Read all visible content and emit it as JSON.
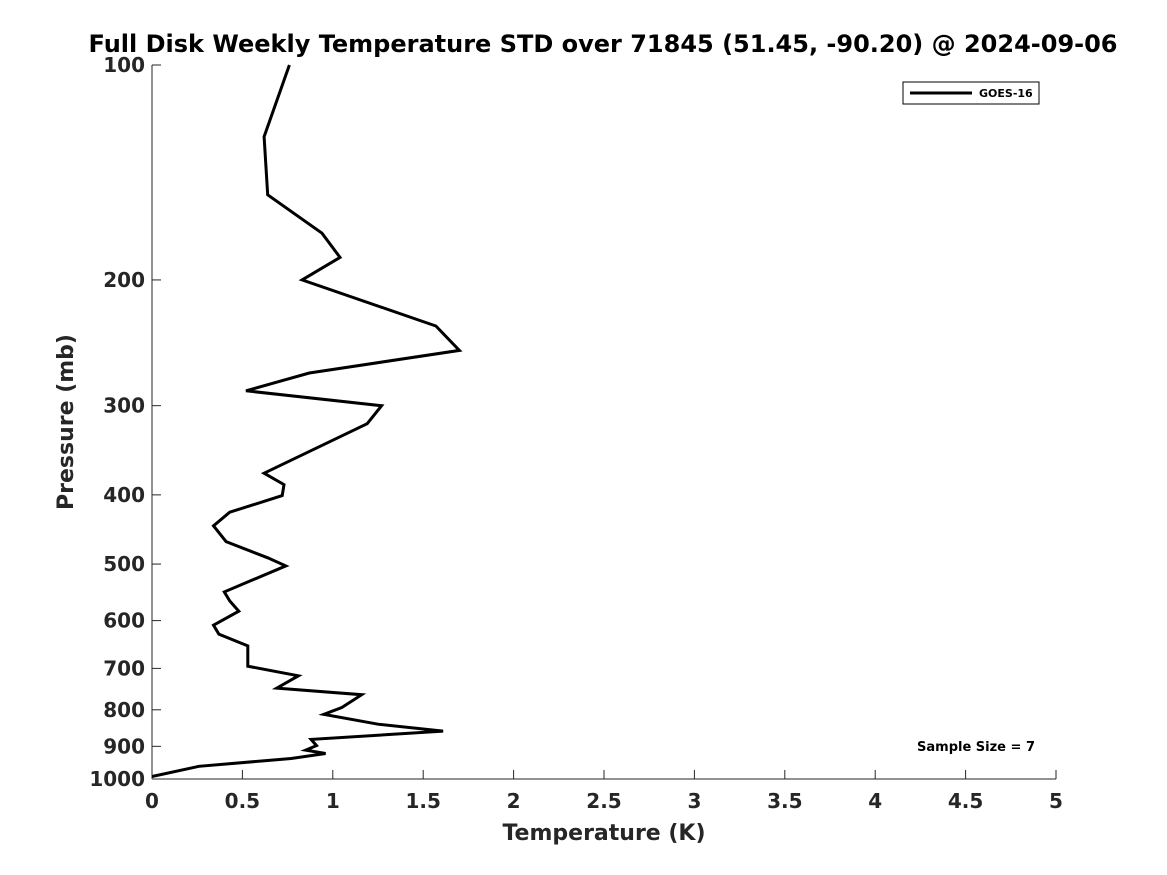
{
  "chart_data": {
    "type": "line",
    "title": "Full Disk Weekly Temperature STD over 71845 (51.45, -90.20) @ 2024-09-06",
    "xlabel": "Temperature (K)",
    "ylabel": "Pressure (mb)",
    "xlim": [
      0,
      5
    ],
    "ylim": [
      1000,
      100
    ],
    "yscale": "log",
    "y_reversed": true,
    "grid": false,
    "legend_position": "top-right",
    "x_ticks": [
      "0",
      "0.5",
      "1",
      "1.5",
      "2",
      "2.5",
      "3",
      "3.5",
      "4",
      "4.5",
      "5"
    ],
    "y_ticks": [
      "100",
      "200",
      "300",
      "400",
      "500",
      "600",
      "700",
      "800",
      "900",
      "1000"
    ],
    "series": [
      {
        "name": "GOES-16",
        "color": "#000000",
        "points": [
          [
            0.76,
            100
          ],
          [
            0.62,
            126
          ],
          [
            0.64,
            152
          ],
          [
            0.94,
            172
          ],
          [
            1.04,
            186
          ],
          [
            0.83,
            200
          ],
          [
            1.57,
            232
          ],
          [
            1.7,
            251
          ],
          [
            0.87,
            270
          ],
          [
            0.52,
            286
          ],
          [
            1.27,
            300
          ],
          [
            1.19,
            318
          ],
          [
            0.62,
            373
          ],
          [
            0.73,
            387
          ],
          [
            0.72,
            401
          ],
          [
            0.43,
            423
          ],
          [
            0.34,
            442
          ],
          [
            0.41,
            465
          ],
          [
            0.64,
            490
          ],
          [
            0.74,
            503
          ],
          [
            0.4,
            547
          ],
          [
            0.43,
            563
          ],
          [
            0.48,
            582
          ],
          [
            0.34,
            609
          ],
          [
            0.37,
            627
          ],
          [
            0.53,
            651
          ],
          [
            0.53,
            695
          ],
          [
            0.81,
            717
          ],
          [
            0.69,
            746
          ],
          [
            1.16,
            762
          ],
          [
            1.05,
            794
          ],
          [
            0.95,
            812
          ],
          [
            1.25,
            838
          ],
          [
            1.61,
            857
          ],
          [
            0.88,
            880
          ],
          [
            0.91,
            898
          ],
          [
            0.85,
            911
          ],
          [
            0.96,
            921
          ],
          [
            0.77,
            936
          ],
          [
            0.26,
            960
          ],
          [
            0.0,
            992
          ]
        ]
      }
    ],
    "annotation": "Sample Size = 7"
  }
}
